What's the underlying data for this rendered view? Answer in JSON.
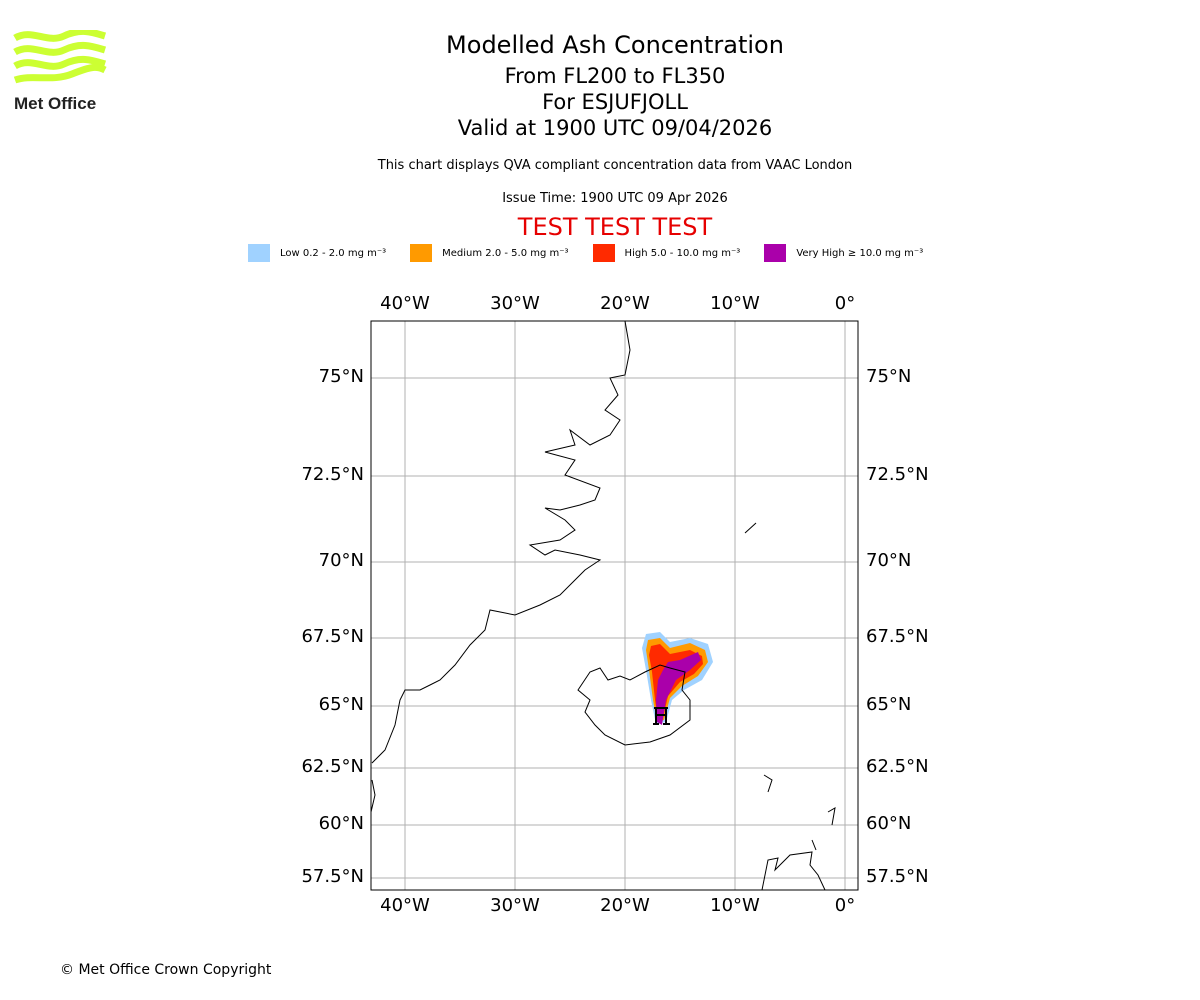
{
  "logo": {
    "text": "Met Office"
  },
  "header": {
    "title": "Modelled Ash Concentration",
    "levels": "From FL200 to FL350",
    "volcano": "For ESJUFJOLL",
    "valid": "Valid at 1900 UTC 09/04/2026",
    "description": "This chart displays QVA compliant concentration data from VAAC London",
    "issue_time": "Issue Time: 1900 UTC 09 Apr 2026",
    "test_banner": "TEST TEST TEST",
    "test_color": "#e60000"
  },
  "legend": [
    {
      "label": "Low 0.2 - 2.0 mg m⁻³",
      "color": "#a0d2ff"
    },
    {
      "label": "Medium 2.0 - 5.0 mg m⁻³",
      "color": "#ff9a00"
    },
    {
      "label": "High 5.0 - 10.0 mg m⁻³",
      "color": "#ff2a00"
    },
    {
      "label": "Very High ≥ 10.0 mg m⁻³",
      "color": "#aa00aa"
    }
  ],
  "map": {
    "lon_labels": [
      "40°W",
      "30°W",
      "20°W",
      "10°W",
      "0°"
    ],
    "lat_labels": [
      "75°N",
      "72.5°N",
      "70°N",
      "67.5°N",
      "65°N",
      "62.5°N",
      "60°N",
      "57.5°N"
    ]
  },
  "footer": {
    "copyright": "© Met Office Crown Copyright"
  }
}
